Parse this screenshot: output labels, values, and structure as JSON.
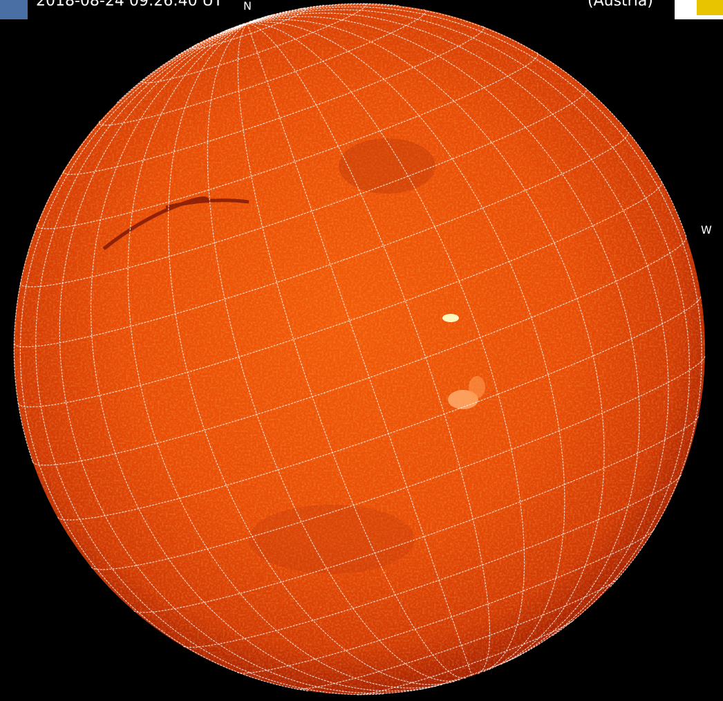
{
  "header": {
    "timestamp": "2018-08-24 09:26:40 UT",
    "location": "(Austria)"
  },
  "labels": {
    "north": "N",
    "west": "W"
  }
}
